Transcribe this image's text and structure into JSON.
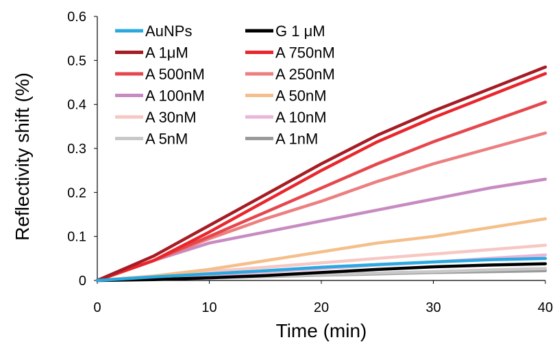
{
  "chart_data": {
    "type": "line",
    "title": "",
    "xlabel": "Time (min)",
    "ylabel": "Reflectivity shift (%)",
    "xlim": [
      0,
      40
    ],
    "ylim": [
      0,
      0.6
    ],
    "xticks": [
      0,
      10,
      20,
      30,
      40
    ],
    "yticks": [
      0,
      0.1,
      0.2,
      0.3,
      0.4,
      0.5,
      0.6
    ],
    "ytick_labels": [
      "0",
      "0.1",
      "0.2",
      "0.3",
      "0.4",
      "0.5",
      "0.6"
    ],
    "grid": false,
    "legend_position": "top-left",
    "series": [
      {
        "name": "AuNPs",
        "color": "#29a9e1",
        "x": [
          0,
          5,
          10,
          15,
          20,
          25,
          30,
          35,
          40
        ],
        "y": [
          0,
          0.008,
          0.015,
          0.022,
          0.03,
          0.036,
          0.042,
          0.047,
          0.05
        ]
      },
      {
        "name": "G 1 μM",
        "color": "#000000",
        "x": [
          0,
          5,
          10,
          15,
          20,
          25,
          30,
          35,
          40
        ],
        "y": [
          0,
          0.002,
          0.006,
          0.011,
          0.018,
          0.025,
          0.031,
          0.035,
          0.038
        ]
      },
      {
        "name": "A 1μM",
        "color": "#a51c24",
        "x": [
          0,
          5,
          10,
          15,
          20,
          25,
          30,
          35,
          40
        ],
        "y": [
          0,
          0.055,
          0.125,
          0.195,
          0.265,
          0.33,
          0.385,
          0.435,
          0.485
        ]
      },
      {
        "name": "A 750nM",
        "color": "#e8262c",
        "x": [
          0,
          5,
          10,
          15,
          20,
          25,
          30,
          35,
          40
        ],
        "y": [
          0,
          0.045,
          0.11,
          0.18,
          0.25,
          0.315,
          0.37,
          0.42,
          0.47
        ]
      },
      {
        "name": "A 500nM",
        "color": "#e5474d",
        "x": [
          0,
          5,
          10,
          15,
          20,
          25,
          30,
          35,
          40
        ],
        "y": [
          0,
          0.045,
          0.1,
          0.155,
          0.21,
          0.265,
          0.315,
          0.36,
          0.405
        ]
      },
      {
        "name": "A 250nM",
        "color": "#ec7f7f",
        "x": [
          0,
          5,
          10,
          15,
          20,
          25,
          30,
          35,
          40
        ],
        "y": [
          0,
          0.045,
          0.095,
          0.14,
          0.18,
          0.225,
          0.265,
          0.3,
          0.335
        ]
      },
      {
        "name": "A 100nM",
        "color": "#c78bc2",
        "x": [
          0,
          5,
          10,
          15,
          20,
          25,
          30,
          35,
          40
        ],
        "y": [
          0,
          0.045,
          0.085,
          0.11,
          0.135,
          0.16,
          0.185,
          0.21,
          0.23
        ]
      },
      {
        "name": "A 50nM",
        "color": "#f4bf8a",
        "x": [
          0,
          5,
          10,
          15,
          20,
          25,
          30,
          35,
          40
        ],
        "y": [
          0,
          0.01,
          0.025,
          0.045,
          0.065,
          0.085,
          0.1,
          0.12,
          0.14
        ]
      },
      {
        "name": "A 30nM",
        "color": "#f7c7c4",
        "x": [
          0,
          5,
          10,
          15,
          20,
          25,
          30,
          35,
          40
        ],
        "y": [
          0,
          0.01,
          0.02,
          0.03,
          0.04,
          0.05,
          0.06,
          0.07,
          0.08
        ]
      },
      {
        "name": "A 10nM",
        "color": "#e8b6d9",
        "x": [
          0,
          5,
          10,
          15,
          20,
          25,
          30,
          35,
          40
        ],
        "y": [
          0,
          0.006,
          0.012,
          0.019,
          0.027,
          0.035,
          0.042,
          0.05,
          0.058
        ]
      },
      {
        "name": "A 5nM",
        "color": "#c8c8c8",
        "x": [
          0,
          5,
          10,
          15,
          20,
          25,
          30,
          35,
          40
        ],
        "y": [
          0,
          0.003,
          0.006,
          0.01,
          0.013,
          0.017,
          0.02,
          0.024,
          0.027
        ]
      },
      {
        "name": "A 1nM",
        "color": "#9a9a9a",
        "x": [
          0,
          5,
          10,
          15,
          20,
          25,
          30,
          35,
          40
        ],
        "y": [
          0,
          0.003,
          0.006,
          0.009,
          0.012,
          0.015,
          0.018,
          0.02,
          0.022
        ]
      }
    ]
  }
}
